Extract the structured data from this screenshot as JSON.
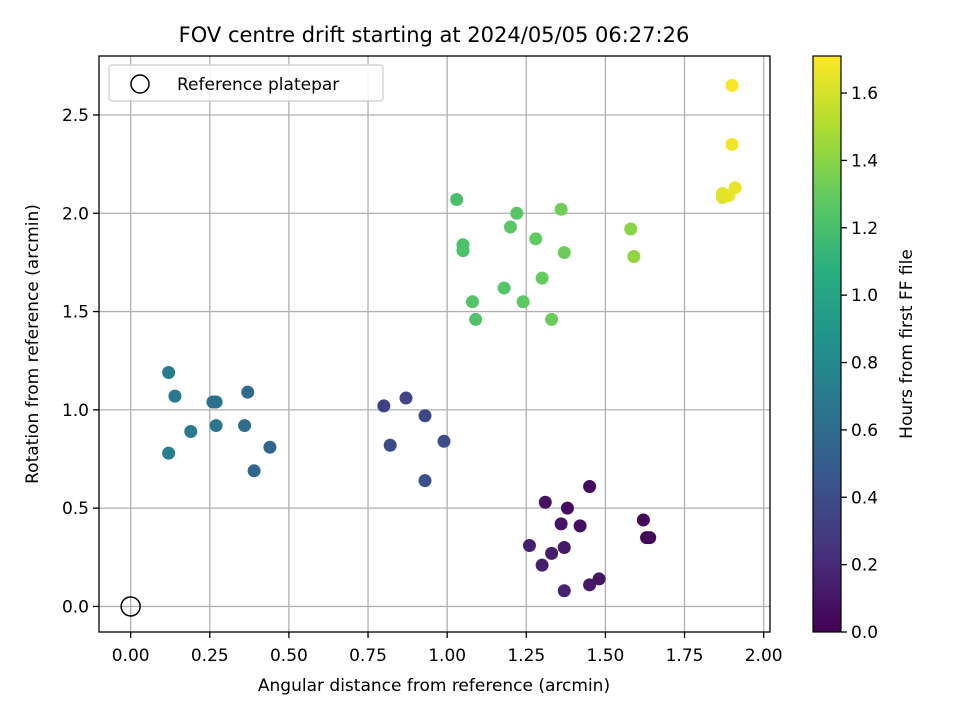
{
  "chart_data": {
    "type": "scatter",
    "title": "FOV centre drift starting at 2024/05/05 06:27:26",
    "xlabel": "Angular distance from reference (arcmin)",
    "ylabel": "Rotation from reference (arcmin)",
    "xlim": [
      -0.1,
      2.02
    ],
    "ylim": [
      -0.13,
      2.8
    ],
    "xticks": [
      0.0,
      0.25,
      0.5,
      0.75,
      1.0,
      1.25,
      1.5,
      1.75,
      2.0
    ],
    "xtick_labels": [
      "0.00",
      "0.25",
      "0.50",
      "0.75",
      "1.00",
      "1.25",
      "1.50",
      "1.75",
      "2.00"
    ],
    "yticks": [
      0.0,
      0.5,
      1.0,
      1.5,
      2.0,
      2.5
    ],
    "ytick_labels": [
      "0.0",
      "0.5",
      "1.0",
      "1.5",
      "2.0",
      "2.5"
    ],
    "grid": true,
    "legend": {
      "position": "top-left",
      "entries": [
        "Reference platepar"
      ]
    },
    "colorbar": {
      "label": "Hours from first FF file",
      "colormap": "viridis",
      "range": [
        0,
        1.71
      ],
      "ticks": [
        0.0,
        0.2,
        0.4,
        0.6,
        0.8,
        1.0,
        1.2,
        1.4,
        1.6
      ],
      "tick_labels": [
        "0.0",
        "0.2",
        "0.4",
        "0.6",
        "0.8",
        "1.0",
        "1.2",
        "1.4",
        "1.6"
      ]
    },
    "reference_point": {
      "x": 0.0,
      "y": 0.0
    },
    "points": [
      {
        "x": 1.63,
        "y": 0.35,
        "c": 0.02
      },
      {
        "x": 1.64,
        "y": 0.35,
        "c": 0.03
      },
      {
        "x": 1.62,
        "y": 0.44,
        "c": 0.04
      },
      {
        "x": 1.45,
        "y": 0.61,
        "c": 0.05
      },
      {
        "x": 1.38,
        "y": 0.5,
        "c": 0.06
      },
      {
        "x": 1.42,
        "y": 0.41,
        "c": 0.07
      },
      {
        "x": 1.31,
        "y": 0.53,
        "c": 0.08
      },
      {
        "x": 1.36,
        "y": 0.42,
        "c": 0.09
      },
      {
        "x": 1.48,
        "y": 0.14,
        "c": 0.1
      },
      {
        "x": 1.45,
        "y": 0.11,
        "c": 0.11
      },
      {
        "x": 1.37,
        "y": 0.3,
        "c": 0.12
      },
      {
        "x": 1.33,
        "y": 0.27,
        "c": 0.13
      },
      {
        "x": 1.3,
        "y": 0.21,
        "c": 0.14
      },
      {
        "x": 1.26,
        "y": 0.31,
        "c": 0.15
      },
      {
        "x": 1.37,
        "y": 0.08,
        "c": 0.16
      },
      {
        "x": 0.8,
        "y": 1.02,
        "c": 0.33
      },
      {
        "x": 0.87,
        "y": 1.06,
        "c": 0.35
      },
      {
        "x": 0.93,
        "y": 0.97,
        "c": 0.37
      },
      {
        "x": 0.82,
        "y": 0.82,
        "c": 0.38
      },
      {
        "x": 0.99,
        "y": 0.84,
        "c": 0.4
      },
      {
        "x": 0.93,
        "y": 0.64,
        "c": 0.42
      },
      {
        "x": 0.44,
        "y": 0.81,
        "c": 0.55
      },
      {
        "x": 0.39,
        "y": 0.69,
        "c": 0.57
      },
      {
        "x": 0.37,
        "y": 1.09,
        "c": 0.59
      },
      {
        "x": 0.36,
        "y": 0.92,
        "c": 0.61
      },
      {
        "x": 0.26,
        "y": 1.04,
        "c": 0.63
      },
      {
        "x": 0.27,
        "y": 1.04,
        "c": 0.64
      },
      {
        "x": 0.27,
        "y": 0.92,
        "c": 0.66
      },
      {
        "x": 0.14,
        "y": 1.07,
        "c": 0.68
      },
      {
        "x": 0.19,
        "y": 0.89,
        "c": 0.7
      },
      {
        "x": 0.12,
        "y": 1.19,
        "c": 0.72
      },
      {
        "x": 0.12,
        "y": 0.78,
        "c": 0.74
      },
      {
        "x": 1.03,
        "y": 2.07,
        "c": 1.2
      },
      {
        "x": 1.05,
        "y": 1.84,
        "c": 1.21
      },
      {
        "x": 1.05,
        "y": 1.81,
        "c": 1.22
      },
      {
        "x": 1.09,
        "y": 1.46,
        "c": 1.23
      },
      {
        "x": 1.08,
        "y": 1.55,
        "c": 1.24
      },
      {
        "x": 1.18,
        "y": 1.62,
        "c": 1.25
      },
      {
        "x": 1.22,
        "y": 2.0,
        "c": 1.26
      },
      {
        "x": 1.2,
        "y": 1.93,
        "c": 1.27
      },
      {
        "x": 1.24,
        "y": 1.55,
        "c": 1.28
      },
      {
        "x": 1.28,
        "y": 1.87,
        "c": 1.29
      },
      {
        "x": 1.3,
        "y": 1.67,
        "c": 1.3
      },
      {
        "x": 1.33,
        "y": 1.46,
        "c": 1.31
      },
      {
        "x": 1.37,
        "y": 1.8,
        "c": 1.32
      },
      {
        "x": 1.36,
        "y": 2.02,
        "c": 1.33
      },
      {
        "x": 1.58,
        "y": 1.92,
        "c": 1.4
      },
      {
        "x": 1.59,
        "y": 1.78,
        "c": 1.42
      },
      {
        "x": 1.87,
        "y": 2.08,
        "c": 1.63
      },
      {
        "x": 1.87,
        "y": 2.1,
        "c": 1.64
      },
      {
        "x": 1.89,
        "y": 2.09,
        "c": 1.65
      },
      {
        "x": 1.91,
        "y": 2.13,
        "c": 1.66
      },
      {
        "x": 1.9,
        "y": 2.35,
        "c": 1.68
      },
      {
        "x": 1.9,
        "y": 2.65,
        "c": 1.7
      }
    ]
  }
}
